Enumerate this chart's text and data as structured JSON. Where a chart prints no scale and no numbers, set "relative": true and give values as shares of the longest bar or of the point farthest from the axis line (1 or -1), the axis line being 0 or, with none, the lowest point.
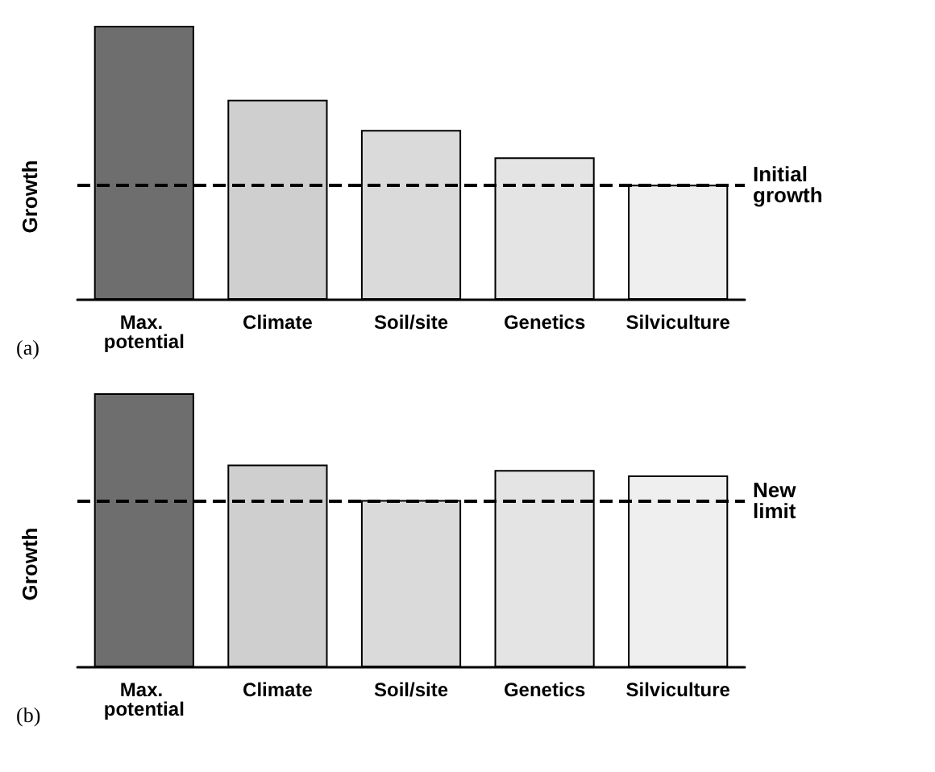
{
  "chart_data": [
    {
      "type": "bar",
      "relative": true,
      "ylabel": "Growth",
      "categories": [
        "Max. potential",
        "Climate",
        "Soil/site",
        "Genetics",
        "Silviculture"
      ],
      "values": [
        1,
        0.73,
        0.62,
        0.52,
        0.42
      ],
      "colors": [
        "#6e6e6e",
        "#cfcfcf",
        "#dadada",
        "#e4e4e4",
        "#efefef"
      ],
      "ref_lines": [
        {
          "axis": "y",
          "value": 0.42,
          "label": "Initial growth",
          "color": "#000000",
          "line_style": "dashed"
        }
      ],
      "annotations": [
        "(a)"
      ]
    },
    {
      "type": "bar",
      "relative": true,
      "ylabel": "Growth",
      "categories": [
        "Max. potential",
        "Climate",
        "Soil/site",
        "Genetics",
        "Silviculture"
      ],
      "values": [
        1,
        0.74,
        0.61,
        0.72,
        0.7
      ],
      "colors": [
        "#6e6e6e",
        "#cfcfcf",
        "#dadada",
        "#e4e4e4",
        "#efefef"
      ],
      "ref_lines": [
        {
          "axis": "y",
          "value": 0.61,
          "label": "New limit",
          "color": "#000000",
          "line_style": "dashed"
        }
      ],
      "annotations": [
        "(b)"
      ]
    }
  ]
}
